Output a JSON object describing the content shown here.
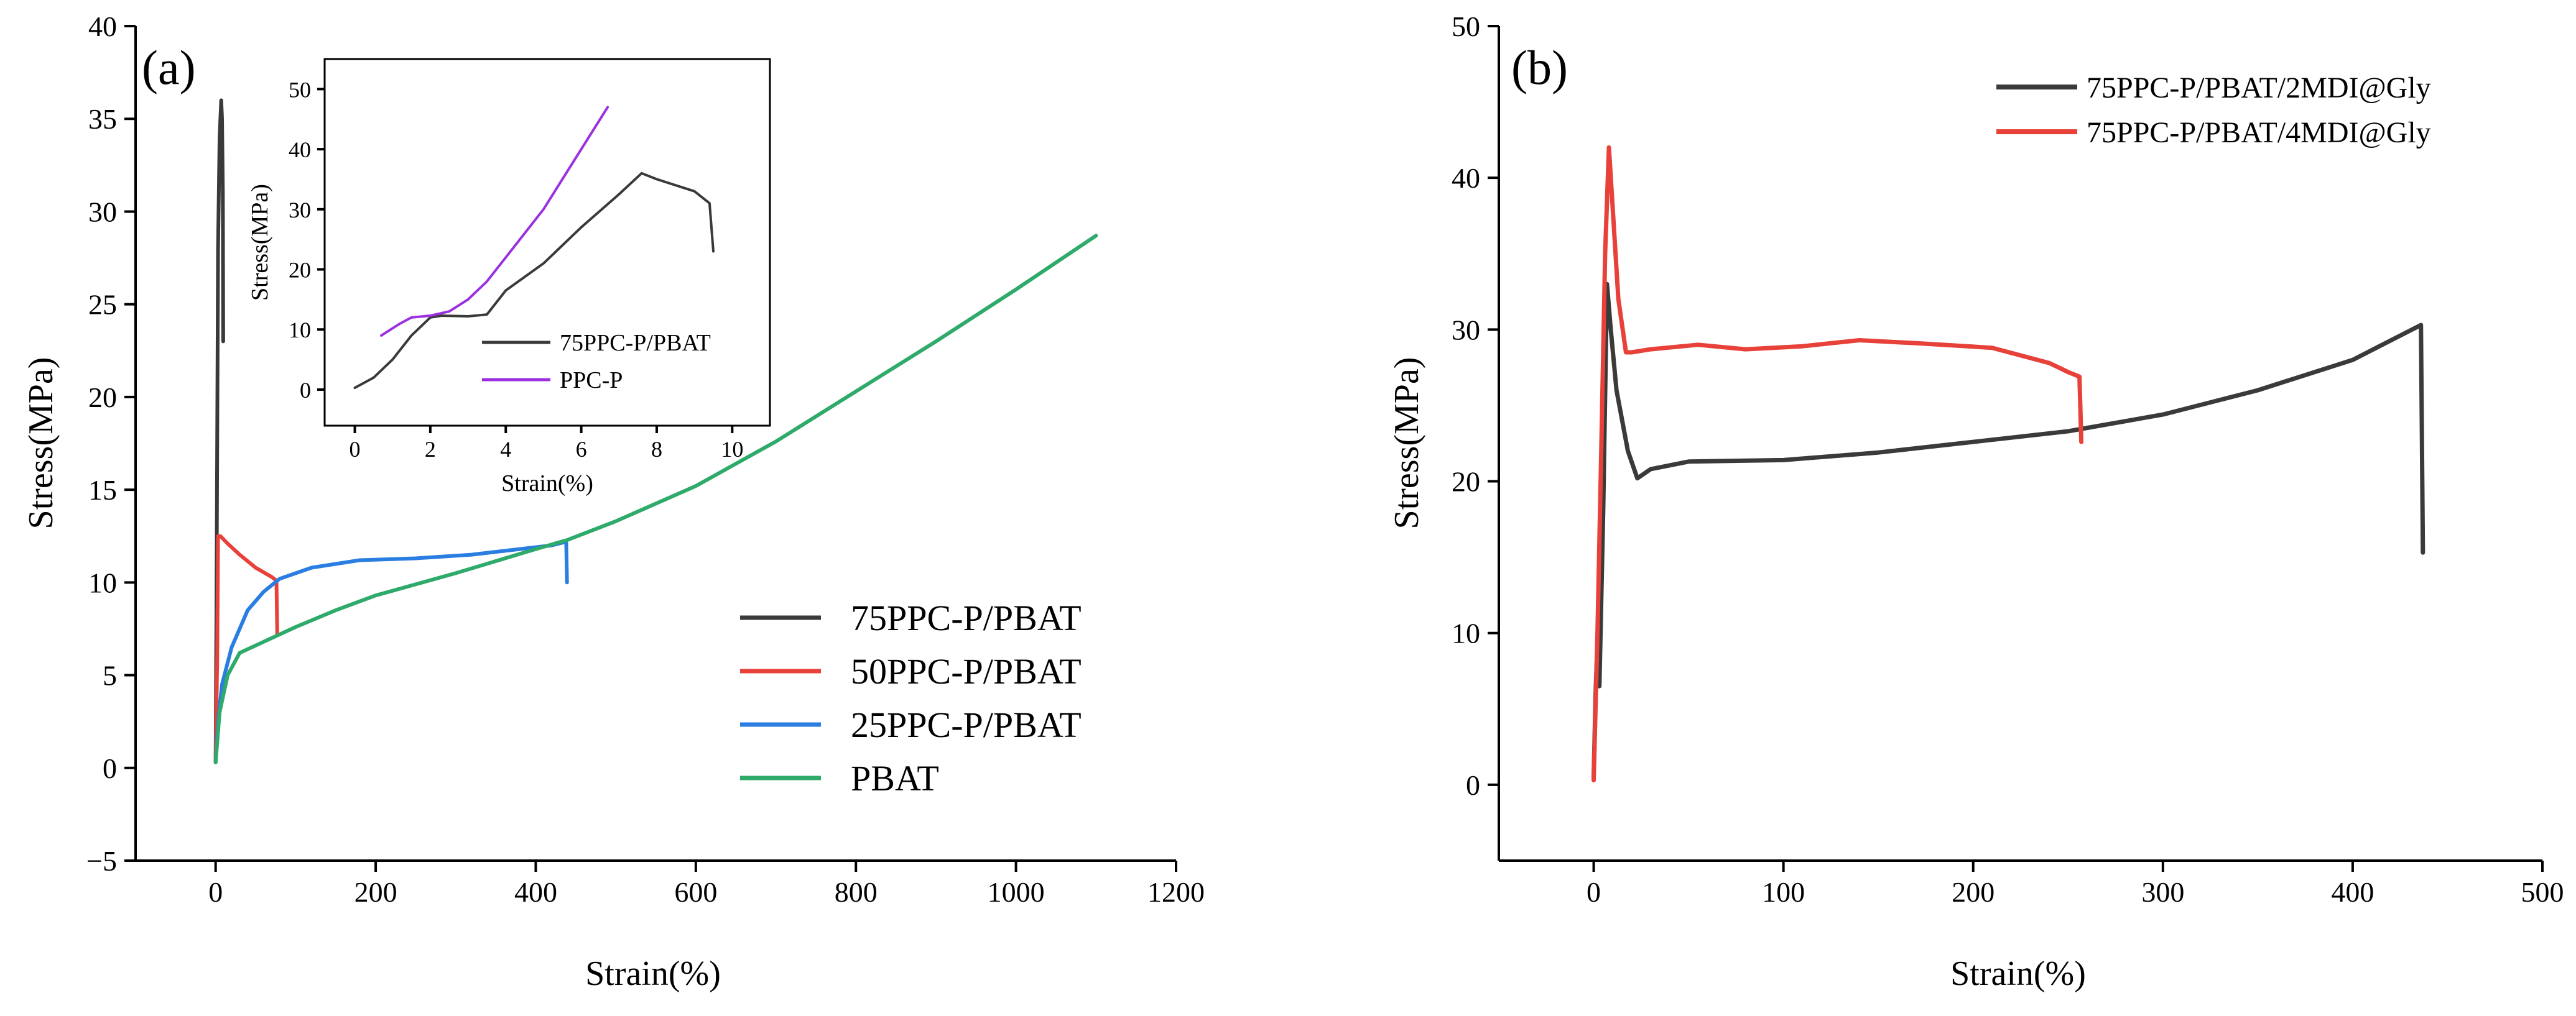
{
  "chart_data": [
    {
      "type": "line",
      "panel_label": "(a)",
      "xlabel": "Strain(%)",
      "ylabel": "Stress(MPa)",
      "xlim": [
        -100,
        1200
      ],
      "ylim": [
        -5,
        40
      ],
      "xticks": [
        0,
        200,
        400,
        600,
        800,
        1000,
        1200
      ],
      "yticks": [
        -5,
        0,
        5,
        10,
        15,
        20,
        25,
        30,
        35,
        40
      ],
      "xtick_labels": [
        "0",
        "200",
        "400",
        "600",
        "800",
        "1000",
        "1200"
      ],
      "ytick_labels": [
        "−5",
        "0",
        "5",
        "10",
        "15",
        "20",
        "25",
        "30",
        "35",
        "40"
      ],
      "legend_position": "bottom-right",
      "series": [
        {
          "name": "75PPC-P/PBAT",
          "color": "#3a3a3a",
          "points": [
            [
              0,
              0.3
            ],
            [
              1,
              8
            ],
            [
              2,
              18
            ],
            [
              3,
              28
            ],
            [
              5,
              34
            ],
            [
              7,
              36
            ],
            [
              8,
              35
            ],
            [
              9,
              31
            ],
            [
              9.5,
              23
            ]
          ]
        },
        {
          "name": "50PPC-P/PBAT",
          "color": "#e8413a",
          "points": [
            [
              0,
              0.3
            ],
            [
              2,
              6
            ],
            [
              3,
              12.5
            ],
            [
              6,
              12.5
            ],
            [
              15,
              12.1
            ],
            [
              30,
              11.5
            ],
            [
              50,
              10.8
            ],
            [
              70,
              10.3
            ],
            [
              76,
              10.1
            ],
            [
              77,
              7.2
            ]
          ]
        },
        {
          "name": "25PPC-P/PBAT",
          "color": "#2a7de1",
          "points": [
            [
              0,
              0.3
            ],
            [
              3,
              2.5
            ],
            [
              8,
              4.5
            ],
            [
              20,
              6.5
            ],
            [
              40,
              8.5
            ],
            [
              60,
              9.5
            ],
            [
              80,
              10.2
            ],
            [
              120,
              10.8
            ],
            [
              180,
              11.2
            ],
            [
              250,
              11.3
            ],
            [
              320,
              11.5
            ],
            [
              380,
              11.8
            ],
            [
              420,
              12.0
            ],
            [
              438,
              12.2
            ],
            [
              439,
              10.0
            ]
          ]
        },
        {
          "name": "PBAT",
          "color": "#2eaa6a",
          "points": [
            [
              0,
              0.3
            ],
            [
              5,
              3
            ],
            [
              15,
              5
            ],
            [
              30,
              6.2
            ],
            [
              60,
              6.8
            ],
            [
              100,
              7.6
            ],
            [
              150,
              8.5
            ],
            [
              200,
              9.3
            ],
            [
              300,
              10.5
            ],
            [
              400,
              11.8
            ],
            [
              440,
              12.3
            ],
            [
              500,
              13.3
            ],
            [
              600,
              15.2
            ],
            [
              700,
              17.6
            ],
            [
              800,
              20.3
            ],
            [
              900,
              23.0
            ],
            [
              1000,
              25.8
            ],
            [
              1100,
              28.7
            ]
          ]
        }
      ],
      "inset": {
        "xlabel": "Strain(%)",
        "ylabel": "Stress(MPa)",
        "xlim": [
          -0.8,
          11
        ],
        "ylim": [
          -6,
          55
        ],
        "xticks": [
          0,
          2,
          4,
          6,
          8,
          10
        ],
        "yticks": [
          0,
          10,
          20,
          30,
          40,
          50
        ],
        "xtick_labels": [
          "0",
          "2",
          "4",
          "6",
          "8",
          "10"
        ],
        "ytick_labels": [
          "0",
          "10",
          "20",
          "30",
          "40",
          "50"
        ],
        "legend_position": "bottom-right",
        "series": [
          {
            "name": "75PPC-P/PBAT",
            "color": "#3a3a3a",
            "points": [
              [
                0,
                0.3
              ],
              [
                0.5,
                2
              ],
              [
                1,
                5
              ],
              [
                1.5,
                9
              ],
              [
                2,
                12
              ],
              [
                2.3,
                12.3
              ],
              [
                3,
                12.2
              ],
              [
                3.5,
                12.5
              ],
              [
                4,
                16.5
              ],
              [
                5,
                21
              ],
              [
                6,
                27
              ],
              [
                7,
                32.5
              ],
              [
                7.6,
                36
              ],
              [
                8,
                35
              ],
              [
                9,
                33
              ],
              [
                9.4,
                31
              ],
              [
                9.5,
                23
              ]
            ]
          },
          {
            "name": "PPC-P",
            "color": "#9b30e0",
            "points": [
              [
                0.7,
                9
              ],
              [
                1.2,
                11
              ],
              [
                1.5,
                12
              ],
              [
                2,
                12.3
              ],
              [
                2.5,
                13
              ],
              [
                3,
                15
              ],
              [
                3.5,
                18
              ],
              [
                4,
                22
              ],
              [
                5,
                30
              ],
              [
                6,
                40
              ],
              [
                6.7,
                47
              ]
            ]
          }
        ]
      }
    },
    {
      "type": "line",
      "panel_label": "(b)",
      "xlabel": "Strain(%)",
      "ylabel": "Stress(MPa)",
      "xlim": [
        -50,
        500
      ],
      "ylim": [
        -5,
        50
      ],
      "xticks": [
        0,
        100,
        200,
        300,
        400,
        500
      ],
      "yticks": [
        0,
        10,
        20,
        30,
        40,
        50
      ],
      "xtick_labels": [
        "0",
        "100",
        "200",
        "300",
        "400",
        "500"
      ],
      "ytick_labels": [
        "0",
        "10",
        "20",
        "30",
        "40",
        "50"
      ],
      "legend_position": "top-right",
      "series": [
        {
          "name": "75PPC-P/PBAT/2MDI@Gly",
          "color": "#3a3a3a",
          "points": [
            [
              0,
              0.5
            ],
            [
              1,
              6
            ],
            [
              2,
              9.5
            ],
            [
              3,
              6.5
            ],
            [
              5,
              18
            ],
            [
              7,
              33
            ],
            [
              9,
              30
            ],
            [
              12,
              26
            ],
            [
              18,
              22
            ],
            [
              23,
              20.2
            ],
            [
              30,
              20.8
            ],
            [
              50,
              21.3
            ],
            [
              100,
              21.4
            ],
            [
              150,
              21.9
            ],
            [
              200,
              22.6
            ],
            [
              250,
              23.3
            ],
            [
              300,
              24.4
            ],
            [
              350,
              26.0
            ],
            [
              400,
              28.0
            ],
            [
              436,
              30.3
            ],
            [
              437,
              15.3
            ]
          ]
        },
        {
          "name": "75PPC-P/PBAT/4MDI@Gly",
          "color": "#e8413a",
          "points": [
            [
              0,
              0.3
            ],
            [
              2,
              10
            ],
            [
              4,
              22
            ],
            [
              6,
              35
            ],
            [
              8,
              42
            ],
            [
              10,
              38
            ],
            [
              13,
              32
            ],
            [
              17,
              28.5
            ],
            [
              20,
              28.5
            ],
            [
              30,
              28.7
            ],
            [
              55,
              29.0
            ],
            [
              80,
              28.7
            ],
            [
              110,
              28.9
            ],
            [
              140,
              29.3
            ],
            [
              170,
              29.1
            ],
            [
              210,
              28.8
            ],
            [
              240,
              27.8
            ],
            [
              250,
              27.2
            ],
            [
              256,
              26.9
            ],
            [
              257,
              22.6
            ]
          ]
        }
      ]
    }
  ],
  "colors": {
    "axis": "#000000",
    "background": "#ffffff"
  }
}
